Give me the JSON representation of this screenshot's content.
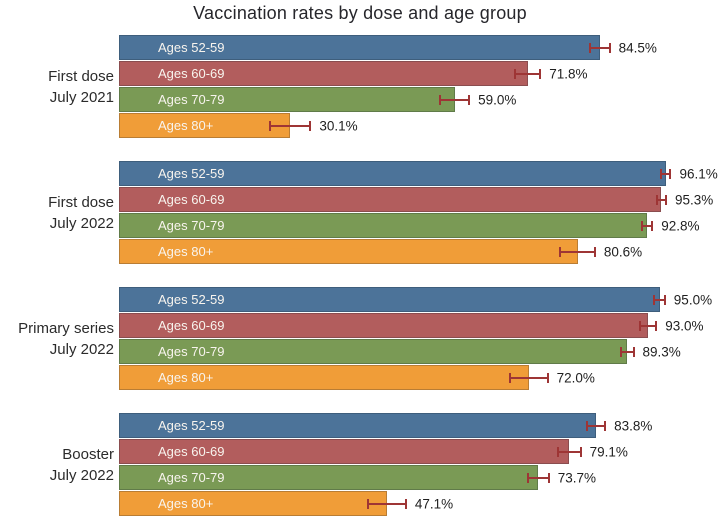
{
  "title": "Vaccination rates by dose and age group",
  "colors": {
    "ages_52_59": "#4c7399",
    "ages_60_69": "#b25d5d",
    "ages_70_79": "#7a9a55",
    "ages_80_plus": "#f09d38",
    "error_bar": "#9e3535",
    "bar_label_text": "#f8f4ee",
    "value_text": "#1f1f1f",
    "title_text": "#26262b",
    "background": "#ffffff"
  },
  "chart_data": {
    "type": "bar",
    "orientation": "horizontal",
    "title": "Vaccination rates by dose and age group",
    "xlabel": "",
    "ylabel": "",
    "unit": "%",
    "xlim": [
      0,
      100
    ],
    "grid": false,
    "legend_position": "labels-inside-bars",
    "error_bars": true,
    "categories": [
      "Ages 52-59",
      "Ages 60-69",
      "Ages 70-79",
      "Ages 80+"
    ],
    "category_colors": [
      "#4c7399",
      "#b25d5d",
      "#7a9a55",
      "#f09d38"
    ],
    "groups": [
      {
        "label_lines": [
          "First dose",
          "July 2021"
        ],
        "values": [
          84.5,
          71.8,
          59.0,
          30.1
        ],
        "value_labels": [
          "84.5%",
          "71.8%",
          "59.0%",
          "30.1%"
        ],
        "error_margins": [
          1.9,
          2.4,
          2.7,
          3.7
        ]
      },
      {
        "label_lines": [
          "First dose",
          "July 2022"
        ],
        "values": [
          96.1,
          95.3,
          92.8,
          80.6
        ],
        "value_labels": [
          "96.1%",
          "95.3%",
          "92.8%",
          "80.6%"
        ],
        "error_margins": [
          1.0,
          1.0,
          1.1,
          3.2
        ]
      },
      {
        "label_lines": [
          "Primary series",
          "July 2022"
        ],
        "values": [
          95.0,
          93.0,
          89.3,
          72.0
        ],
        "value_labels": [
          "95.0%",
          "93.0%",
          "89.3%",
          "72.0%"
        ],
        "error_margins": [
          1.1,
          1.6,
          1.3,
          3.5
        ]
      },
      {
        "label_lines": [
          "Booster",
          "July 2022"
        ],
        "values": [
          83.8,
          79.1,
          73.7,
          47.1
        ],
        "value_labels": [
          "83.8%",
          "79.1%",
          "73.7%",
          "47.1%"
        ],
        "error_margins": [
          1.8,
          2.2,
          2.0,
          3.5
        ]
      }
    ]
  }
}
